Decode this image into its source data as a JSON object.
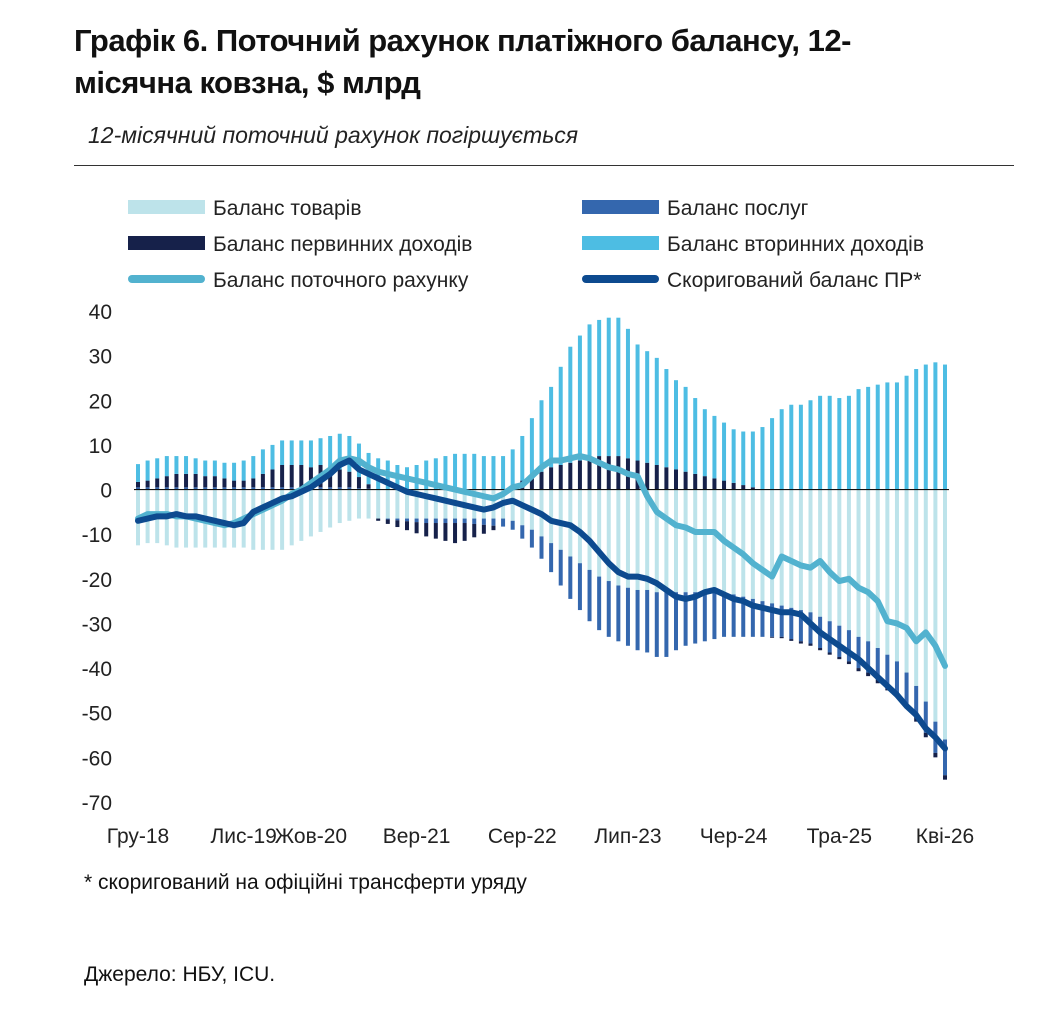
{
  "header": {
    "title": "Графік 6. Поточний рахунок платіжного балансу, 12-місячна ковзна, $ млрд",
    "subtitle": "12-місячний поточний рахунок погіршується"
  },
  "footnote": "* скоригований на офіційні трансферти уряду",
  "source": "Джерело: НБУ, ICU.",
  "colors": {
    "goods": "#bde3ea",
    "services": "#3467ae",
    "primary_income": "#16214a",
    "secondary_income": "#4dbde3",
    "current_account": "#52b2cf",
    "adjusted": "#0d4a8f"
  },
  "chart_data": {
    "type": "bar",
    "stacked": true,
    "ylim": [
      -70,
      40
    ],
    "y_ticks": [
      40,
      30,
      20,
      10,
      0,
      -10,
      -20,
      -30,
      -40,
      -50,
      -60,
      -70
    ],
    "x_tick_labels": [
      {
        "index": 0,
        "label": "Гру-18"
      },
      {
        "index": 11,
        "label": "Лис-19"
      },
      {
        "index": 18,
        "label": "Жов-20"
      },
      {
        "index": 29,
        "label": "Вер-21"
      },
      {
        "index": 40,
        "label": "Сер-22"
      },
      {
        "index": 51,
        "label": "Лип-23"
      },
      {
        "index": 62,
        "label": "Чер-24"
      },
      {
        "index": 73,
        "label": "Тра-25"
      },
      {
        "index": 84,
        "label": "Кві-26"
      }
    ],
    "grid": false,
    "legend_position": "top",
    "legend": [
      {
        "key": "goods",
        "label": "Баланс товарів",
        "kind": "bar"
      },
      {
        "key": "services",
        "label": "Баланс послуг",
        "kind": "bar"
      },
      {
        "key": "primary_income",
        "label": "Баланс первинних доходів",
        "kind": "bar"
      },
      {
        "key": "secondary_income",
        "label": "Баланс вторинних доходів",
        "kind": "bar"
      },
      {
        "key": "current_account",
        "label": "Баланс поточного рахунку",
        "kind": "line"
      },
      {
        "key": "adjusted",
        "label": "Скоригований баланс ПР*",
        "kind": "line"
      }
    ],
    "series": [
      {
        "key": "goods",
        "values": [
          -12.5,
          -12.0,
          -12.0,
          -12.5,
          -13.0,
          -13.0,
          -13.0,
          -13.0,
          -13.0,
          -13.0,
          -13.0,
          -13.0,
          -13.5,
          -13.5,
          -13.5,
          -13.5,
          -12.5,
          -11.5,
          -10.5,
          -9.5,
          -8.5,
          -7.5,
          -7.0,
          -6.5,
          -6.5,
          -6.5,
          -6.5,
          -6.5,
          -6.5,
          -6.5,
          -6.5,
          -6.5,
          -6.5,
          -6.5,
          -6.5,
          -6.5,
          -6.5,
          -6.5,
          -6.5,
          -7.0,
          -8.0,
          -9.0,
          -10.5,
          -12.0,
          -13.5,
          -15.0,
          -16.5,
          -18.0,
          -19.5,
          -20.5,
          -21.5,
          -22.0,
          -22.5,
          -22.5,
          -23.0,
          -23.0,
          -23.0,
          -23.0,
          -23.0,
          -23.0,
          -23.0,
          -23.0,
          -23.5,
          -24.0,
          -24.5,
          -25.0,
          -25.5,
          -26.0,
          -26.5,
          -27.0,
          -27.5,
          -28.5,
          -29.5,
          -30.5,
          -31.5,
          -33.0,
          -34.0,
          -35.5,
          -37.0,
          -38.5,
          -41.0,
          -44.0,
          -47.5,
          -52.0,
          -56.0
        ]
      },
      {
        "key": "services",
        "values": [
          0.5,
          0.5,
          0.5,
          0.5,
          0.5,
          0.5,
          0.5,
          0.5,
          0.5,
          0.5,
          0.5,
          0.5,
          0.5,
          0.5,
          0.5,
          0.5,
          0.5,
          0.5,
          0.5,
          0.5,
          0.5,
          0.5,
          0.5,
          0.3,
          0.2,
          0.0,
          -0.2,
          -0.4,
          -0.6,
          -0.8,
          -1.0,
          -1.0,
          -1.0,
          -1.0,
          -1.0,
          -1.2,
          -1.4,
          -1.6,
          -1.8,
          -2.0,
          -3.0,
          -4.0,
          -5.0,
          -6.5,
          -8.0,
          -9.5,
          -10.5,
          -11.5,
          -12.0,
          -12.5,
          -12.5,
          -13.0,
          -13.5,
          -14.0,
          -14.5,
          -14.5,
          -13.0,
          -12.0,
          -11.5,
          -11.0,
          -10.5,
          -10.0,
          -9.5,
          -9.0,
          -8.5,
          -8.0,
          -7.5,
          -7.0,
          -7.0,
          -7.0,
          -7.0,
          -7.0,
          -7.0,
          -7.0,
          -7.0,
          -7.0,
          -7.0,
          -7.0,
          -7.0,
          -7.0,
          -7.0,
          -7.0,
          -7.0,
          -7.0,
          -8.0
        ]
      },
      {
        "key": "primary_income",
        "values": [
          1.2,
          1.5,
          2.0,
          2.5,
          3.0,
          3.0,
          3.0,
          2.5,
          2.5,
          2.0,
          1.5,
          1.5,
          2.0,
          3.0,
          4.0,
          5.0,
          5.0,
          5.0,
          4.5,
          5.0,
          4.5,
          4.0,
          3.5,
          2.5,
          1.0,
          -0.5,
          -1.0,
          -1.5,
          -2.0,
          -2.5,
          -3.0,
          -3.5,
          -4.0,
          -4.5,
          -4.0,
          -3.0,
          -2.0,
          -1.0,
          0.0,
          1.0,
          2.0,
          3.0,
          4.0,
          5.0,
          5.5,
          6.0,
          6.5,
          7.0,
          7.5,
          7.5,
          7.5,
          7.0,
          6.5,
          6.0,
          5.5,
          5.0,
          4.5,
          4.0,
          3.5,
          3.0,
          2.5,
          2.0,
          1.5,
          1.0,
          0.5,
          0.0,
          -0.2,
          -0.3,
          -0.4,
          -0.5,
          -0.5,
          -0.5,
          -0.5,
          -0.5,
          -0.6,
          -0.7,
          -0.8,
          -0.9,
          -1.0,
          -1.0,
          -1.0,
          -1.0,
          -1.0,
          -1.0,
          -1.0
        ]
      },
      {
        "key": "secondary_income",
        "values": [
          4.0,
          4.5,
          4.5,
          4.5,
          4.0,
          4.0,
          3.5,
          3.5,
          3.5,
          3.5,
          4.0,
          4.5,
          5.0,
          5.5,
          5.5,
          5.5,
          5.5,
          5.5,
          6.0,
          6.0,
          7.0,
          8.0,
          8.0,
          7.5,
          7.0,
          7.0,
          6.5,
          5.5,
          5.0,
          5.5,
          6.5,
          7.0,
          7.5,
          8.0,
          8.0,
          8.0,
          7.5,
          7.5,
          7.5,
          8.0,
          10.0,
          13.0,
          16.0,
          18.0,
          22.0,
          26.0,
          28.0,
          30.0,
          30.5,
          31.0,
          31.0,
          29.0,
          26.0,
          25.0,
          24.0,
          22.0,
          20.0,
          19.0,
          17.0,
          15.0,
          14.0,
          13.0,
          12.0,
          12.0,
          12.5,
          14.0,
          16.0,
          18.0,
          19.0,
          19.0,
          20.0,
          21.0,
          21.0,
          20.5,
          21.0,
          22.5,
          23.0,
          23.5,
          24.0,
          24.0,
          25.5,
          27.0,
          28.0,
          28.5,
          28.0
        ]
      },
      {
        "key": "current_account",
        "kind": "line",
        "values": [
          -6.5,
          -5.5,
          -5.5,
          -5.5,
          -6.0,
          -6.0,
          -6.5,
          -7.0,
          -7.5,
          -8.0,
          -7.5,
          -6.5,
          -5.5,
          -4.5,
          -3.5,
          -2.5,
          -1.0,
          0.0,
          1.5,
          3.0,
          4.5,
          6.5,
          7.0,
          6.5,
          5.0,
          4.0,
          3.5,
          3.0,
          2.5,
          2.0,
          1.5,
          1.0,
          0.5,
          0.0,
          -0.5,
          -1.0,
          -1.5,
          -2.0,
          -1.0,
          0.5,
          1.0,
          3.0,
          5.0,
          6.5,
          6.5,
          7.0,
          7.5,
          7.0,
          6.0,
          5.0,
          4.5,
          3.5,
          3.0,
          -1.5,
          -5.0,
          -6.5,
          -8.0,
          -8.5,
          -9.5,
          -9.5,
          -9.5,
          -11.5,
          -13.0,
          -14.5,
          -16.5,
          -18.0,
          -19.5,
          -15.0,
          -16.0,
          -17.0,
          -17.5,
          -16.0,
          -18.5,
          -20.5,
          -20.0,
          -22.0,
          -23.0,
          -25.0,
          -29.5,
          -30.0,
          -31.0,
          -34.0,
          -32.0,
          -35.0,
          -39.5
        ]
      },
      {
        "key": "adjusted",
        "kind": "line",
        "values": [
          -7.0,
          -6.5,
          -6.0,
          -6.0,
          -5.5,
          -6.0,
          -6.0,
          -6.5,
          -7.0,
          -7.5,
          -8.0,
          -7.5,
          -5.0,
          -4.0,
          -3.0,
          -2.0,
          -1.5,
          -0.5,
          0.5,
          2.0,
          3.5,
          5.5,
          6.5,
          4.5,
          3.5,
          2.5,
          1.5,
          0.5,
          -0.5,
          -1.0,
          -1.5,
          -2.0,
          -2.5,
          -3.0,
          -3.5,
          -4.0,
          -4.5,
          -4.0,
          -3.0,
          -2.5,
          -3.5,
          -4.5,
          -5.5,
          -7.0,
          -7.5,
          -8.0,
          -9.5,
          -11.5,
          -14.0,
          -16.5,
          -18.5,
          -19.5,
          -19.5,
          -20.0,
          -21.0,
          -22.5,
          -24.0,
          -24.5,
          -24.0,
          -23.0,
          -22.5,
          -23.5,
          -24.5,
          -25.0,
          -26.0,
          -26.5,
          -27.0,
          -27.5,
          -27.5,
          -28.0,
          -30.0,
          -32.0,
          -33.5,
          -35.0,
          -36.5,
          -38.0,
          -40.0,
          -42.0,
          -44.0,
          -46.0,
          -48.5,
          -50.5,
          -53.5,
          -55.5,
          -58.0
        ]
      }
    ]
  }
}
